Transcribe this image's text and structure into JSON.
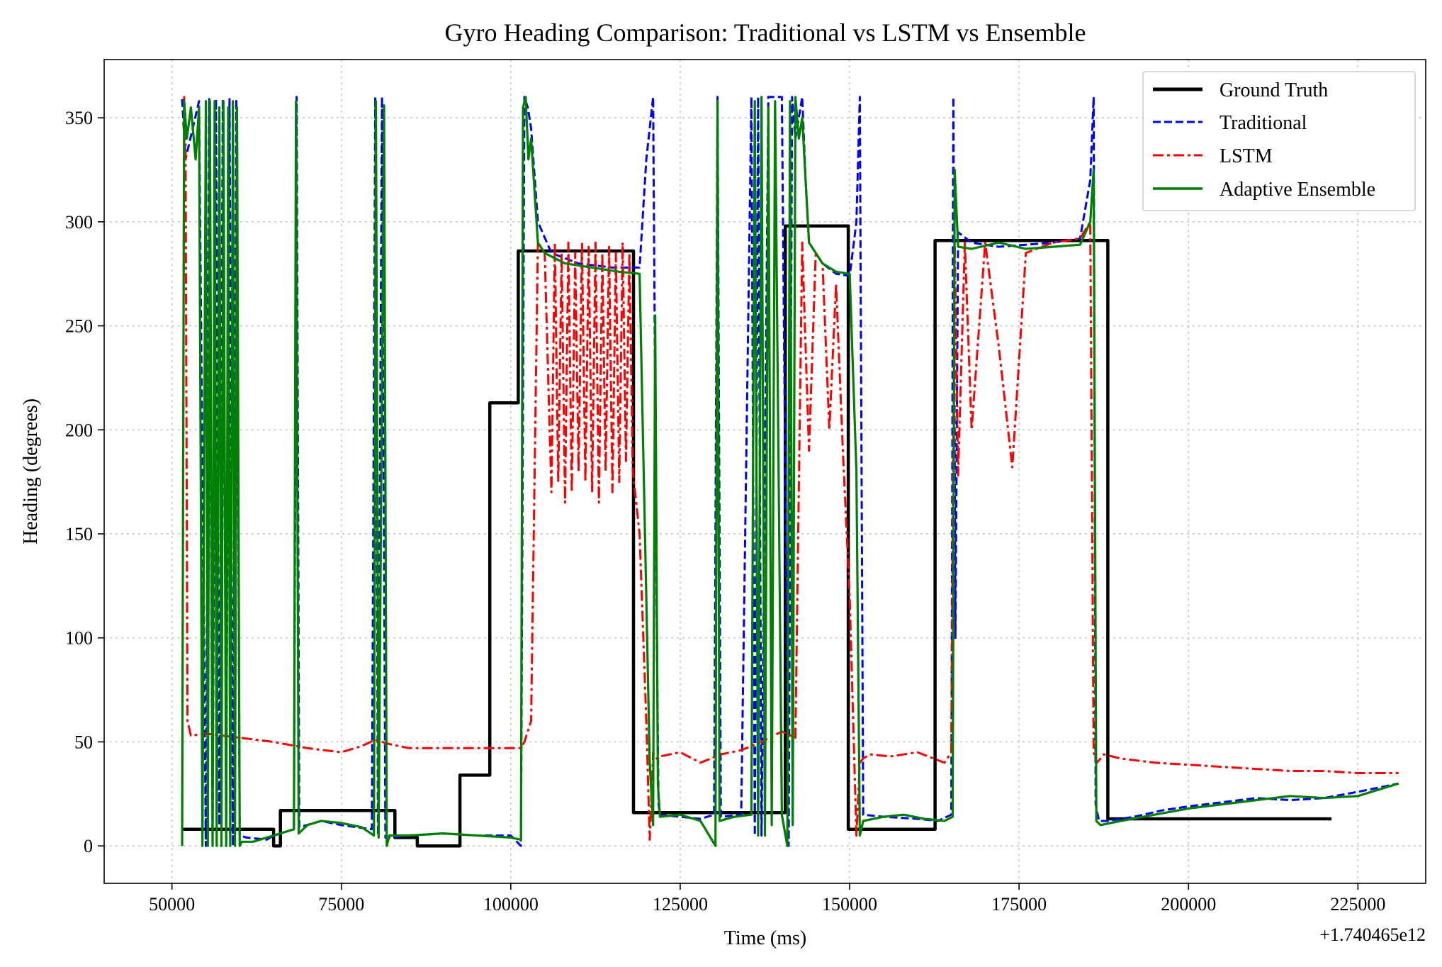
{
  "chart_data": {
    "type": "line",
    "title": "Gyro Heading Comparison: Traditional vs LSTM vs Ensemble",
    "xlabel": "Time (ms)",
    "ylabel": "Heading (degrees)",
    "x_offset_label": "+1.740465e12",
    "xlim": [
      40000,
      235000
    ],
    "ylim": [
      -18,
      378
    ],
    "grid": true,
    "legend_position": "upper right",
    "xticks": [
      50000,
      75000,
      100000,
      125000,
      150000,
      175000,
      200000,
      225000
    ],
    "xtick_labels": [
      "50000",
      "75000",
      "100000",
      "125000",
      "150000",
      "175000",
      "200000",
      "225000"
    ],
    "yticks": [
      0,
      50,
      100,
      150,
      200,
      250,
      300,
      350
    ],
    "ytick_labels": [
      "0",
      "50",
      "100",
      "150",
      "200",
      "250",
      "300",
      "350"
    ],
    "series": [
      {
        "name": "Ground Truth",
        "color": "#000000",
        "style": "solid",
        "x": [
          51500,
          65000,
          65000,
          66000,
          66000,
          82900,
          82900,
          86200,
          86200,
          92500,
          92500,
          96900,
          96900,
          101100,
          101100,
          118100,
          118100,
          140500,
          140500,
          149800,
          149800,
          162600,
          162600,
          188100,
          188100,
          221100
        ],
        "y": [
          8,
          8,
          0,
          0,
          17,
          17,
          4,
          4,
          0,
          0,
          34,
          34,
          213,
          213,
          286,
          286,
          16,
          16,
          298,
          298,
          8,
          8,
          291,
          291,
          13,
          13
        ]
      },
      {
        "name": "Traditional",
        "color": "#0000ff",
        "style": "dashed",
        "x": [
          51500,
          52000,
          54000,
          55000,
          55500,
          56000,
          56500,
          57000,
          57500,
          58000,
          58500,
          59000,
          59500,
          60000,
          61000,
          64000,
          65000,
          68000,
          68400,
          68800,
          72000,
          75000,
          79500,
          80000,
          80400,
          81000,
          81500,
          82000,
          85000,
          90000,
          95000,
          100000,
          101500,
          102000,
          102500,
          103000,
          104000,
          106000,
          110000,
          115000,
          119000,
          120000,
          121000,
          121500,
          121800,
          122000,
          125000,
          128000,
          130000,
          130500,
          131000,
          134000,
          135500,
          136000,
          136500,
          137000,
          138000,
          140000,
          141000,
          141500,
          142000,
          143000,
          143500,
          144000,
          146000,
          148000,
          150000,
          151000,
          151500,
          151800,
          152000,
          155000,
          160000,
          163000,
          165000,
          165300,
          165600,
          166000,
          168000,
          172000,
          176000,
          180000,
          184000,
          185500,
          186000,
          186300,
          186800,
          188000,
          192000,
          196000,
          200000,
          205000,
          210000,
          215000,
          220000,
          225000,
          231000
        ],
        "y": [
          359,
          330,
          358,
          0,
          359,
          0,
          359,
          10,
          359,
          20,
          359,
          0,
          359,
          5,
          4,
          3,
          5,
          8,
          360,
          9,
          12,
          10,
          8,
          360,
          5,
          360,
          4,
          4,
          5,
          6,
          5,
          5,
          0,
          360,
          355,
          345,
          300,
          285,
          280,
          278,
          278,
          330,
          360,
          120,
          20,
          15,
          14,
          13,
          15,
          360,
          14,
          15,
          360,
          5,
          360,
          5,
          360,
          360,
          0,
          360,
          340,
          360,
          320,
          290,
          280,
          275,
          274,
          300,
          360,
          150,
          15,
          14,
          13,
          12,
          15,
          360,
          100,
          295,
          290,
          288,
          289,
          290,
          292,
          320,
          360,
          20,
          12,
          12,
          14,
          17,
          19,
          21,
          23,
          22,
          23,
          26,
          30
        ]
      },
      {
        "name": "LSTM",
        "color": "#ff0000",
        "style": "dashdot",
        "x": [
          51500,
          51800,
          52000,
          52300,
          52800,
          55000,
          60000,
          65000,
          70000,
          75000,
          78000,
          80000,
          82000,
          85000,
          90000,
          95000,
          100000,
          101500,
          102000,
          102500,
          103000,
          104000,
          105000,
          106000,
          106500,
          107000,
          107500,
          108000,
          108500,
          109000,
          109500,
          110000,
          110500,
          111000,
          111500,
          112000,
          112500,
          113000,
          113500,
          114000,
          114500,
          115000,
          115500,
          116000,
          116500,
          117000,
          117500,
          118000,
          119000,
          120000,
          120500,
          121000,
          121500,
          122000,
          125000,
          128000,
          131000,
          134000,
          137000,
          140000,
          142000,
          143000,
          144000,
          145000,
          146000,
          147000,
          148000,
          149000,
          150000,
          151000,
          151500,
          152000,
          153000,
          156000,
          160000,
          164000,
          165000,
          165500,
          166000,
          167000,
          168000,
          170000,
          172000,
          174000,
          176000,
          180000,
          184000,
          185500,
          186000,
          186500,
          187500,
          190000,
          195000,
          200000,
          205000,
          210000,
          215000,
          220000,
          225000,
          231000
        ],
        "y": [
          0,
          360,
          340,
          60,
          53,
          54,
          52,
          50,
          47,
          45,
          48,
          51,
          49,
          47,
          47,
          47,
          47,
          47,
          50,
          55,
          60,
          290,
          285,
          170,
          290,
          175,
          285,
          165,
          290,
          170,
          285,
          180,
          290,
          175,
          288,
          170,
          290,
          165,
          285,
          180,
          288,
          170,
          285,
          175,
          290,
          185,
          285,
          180,
          150,
          60,
          3,
          45,
          42,
          43,
          45,
          40,
          44,
          46,
          50,
          55,
          52,
          290,
          190,
          285,
          280,
          200,
          270,
          190,
          120,
          5,
          40,
          42,
          44,
          43,
          45,
          40,
          45,
          290,
          178,
          290,
          200,
          290,
          240,
          182,
          285,
          290,
          292,
          300,
          45,
          40,
          44,
          42,
          40,
          39,
          38,
          37,
          36,
          36,
          35,
          35
        ]
      },
      {
        "name": "Adaptive Ensemble",
        "color": "#008000",
        "style": "solid",
        "x": [
          51500,
          51800,
          52200,
          52800,
          53500,
          54000,
          54500,
          55000,
          55300,
          55600,
          56000,
          56300,
          56600,
          57000,
          57300,
          57600,
          58000,
          58300,
          58600,
          59000,
          59300,
          59600,
          60000,
          60300,
          62000,
          64000,
          66000,
          68000,
          68300,
          68700,
          70000,
          72000,
          75000,
          78000,
          79800,
          80100,
          80500,
          81300,
          81700,
          82100,
          85000,
          90000,
          95000,
          100000,
          101500,
          101800,
          102200,
          102600,
          103000,
          104000,
          105000,
          108000,
          112000,
          116000,
          119000,
          120500,
          121000,
          121300,
          121700,
          122000,
          125000,
          128000,
          130200,
          130500,
          130800,
          133000,
          135500,
          136000,
          136500,
          137000,
          137500,
          138000,
          138500,
          139000,
          140000,
          140800,
          141200,
          141600,
          142000,
          142500,
          143000,
          144000,
          146000,
          148000,
          150000,
          151000,
          151500,
          152000,
          155000,
          158000,
          161000,
          164000,
          165200,
          165500,
          166000,
          168000,
          172000,
          176000,
          180000,
          184000,
          185500,
          186000,
          186400,
          187000,
          190000,
          195000,
          200000,
          205000,
          210000,
          215000,
          220000,
          225000,
          231000
        ],
        "y": [
          0,
          358,
          340,
          355,
          330,
          355,
          0,
          358,
          0,
          358,
          0,
          358,
          0,
          355,
          0,
          358,
          0,
          355,
          0,
          358,
          0,
          355,
          0,
          2,
          2,
          4,
          6,
          8,
          358,
          6,
          10,
          12,
          11,
          9,
          5,
          358,
          4,
          356,
          0,
          5,
          5,
          6,
          5,
          4,
          3,
          355,
          360,
          330,
          340,
          290,
          285,
          280,
          278,
          276,
          275,
          40,
          10,
          255,
          30,
          14,
          15,
          12,
          0,
          358,
          12,
          14,
          15,
          358,
          5,
          360,
          5,
          355,
          10,
          358,
          15,
          0,
          358,
          10,
          360,
          340,
          350,
          290,
          280,
          276,
          275,
          180,
          5,
          12,
          14,
          15,
          13,
          12,
          14,
          325,
          288,
          287,
          290,
          287,
          288,
          289,
          300,
          325,
          12,
          10,
          12,
          15,
          18,
          20,
          22,
          24,
          23,
          24,
          30
        ]
      }
    ]
  }
}
